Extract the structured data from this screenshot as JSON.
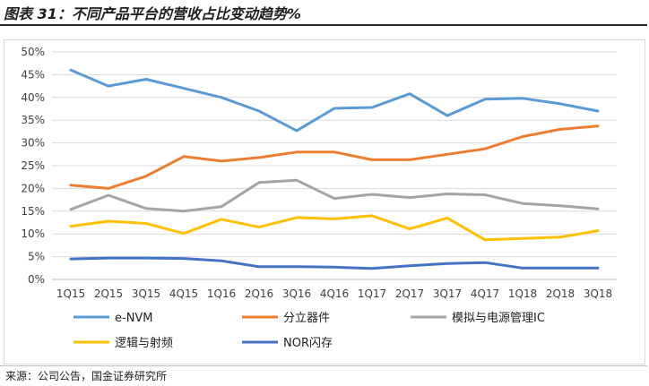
{
  "title": "图表 31：不同产品平台的营收占比变动趋势%",
  "source": "来源：公司公告，国金证券研究所",
  "chart_data": {
    "type": "line",
    "title": "图表 31：不同产品平台的营收占比变动趋势%",
    "xlabel": "",
    "ylabel": "",
    "ylim": [
      0,
      50
    ],
    "yticks": [
      "0%",
      "5%",
      "10%",
      "15%",
      "20%",
      "25%",
      "30%",
      "35%",
      "40%",
      "45%",
      "50%"
    ],
    "grid": true,
    "legend_position": "bottom",
    "categories": [
      "1Q15",
      "2Q15",
      "3Q15",
      "4Q15",
      "1Q16",
      "2Q16",
      "3Q16",
      "4Q16",
      "1Q17",
      "2Q17",
      "3Q17",
      "4Q17",
      "1Q18",
      "2Q18",
      "3Q18"
    ],
    "series": [
      {
        "name": "e-NVM",
        "color": "#5b9bd5",
        "values": [
          46,
          42.5,
          44,
          42,
          40,
          37,
          32.7,
          37.6,
          37.8,
          40.8,
          36,
          39.6,
          39.8,
          38.6,
          37
        ]
      },
      {
        "name": "分立器件",
        "color": "#ed7d31",
        "values": [
          20.7,
          20,
          22.7,
          27,
          26,
          26.8,
          28,
          28,
          26.3,
          26.3,
          27.5,
          28.7,
          31.4,
          33,
          33.7
        ]
      },
      {
        "name": "模拟与电源管理IC",
        "color": "#a5a5a5",
        "values": [
          15.4,
          18.5,
          15.6,
          15,
          16,
          21.3,
          21.8,
          17.8,
          18.7,
          18,
          18.8,
          18.6,
          16.7,
          16.2,
          15.5
        ]
      },
      {
        "name": "逻辑与射频",
        "color": "#ffc000",
        "values": [
          11.7,
          12.8,
          12.3,
          10.1,
          13.2,
          11.5,
          13.6,
          13.3,
          14,
          11.1,
          13.5,
          8.7,
          9,
          9.3,
          10.7
        ]
      },
      {
        "name": "NOR闪存",
        "color": "#4472c4",
        "values": [
          4.5,
          4.7,
          4.7,
          4.6,
          4.1,
          2.8,
          2.8,
          2.7,
          2.4,
          3,
          3.5,
          3.7,
          2.5,
          2.5,
          2.5
        ]
      }
    ]
  }
}
